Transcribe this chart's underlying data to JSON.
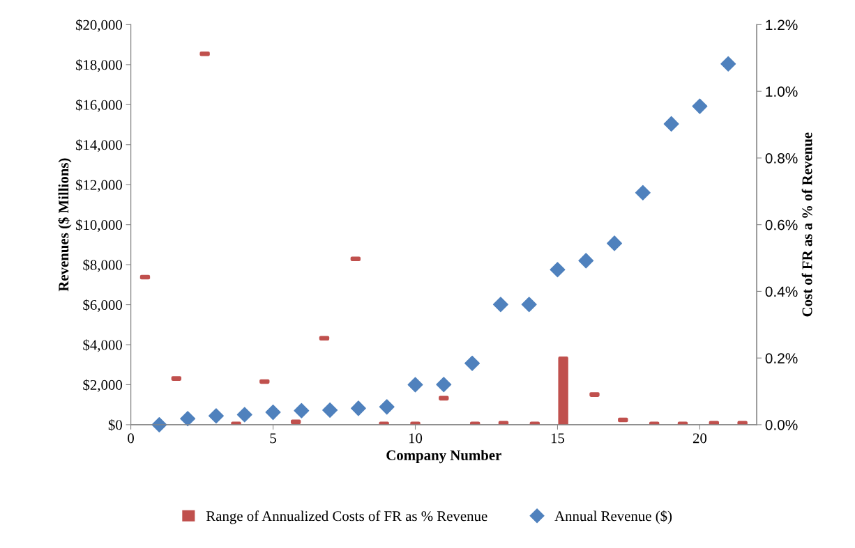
{
  "chart_data": {
    "type": "scatter",
    "xlabel": "Company Number",
    "ylabel": "Revenues ($ Millions)",
    "y2label": "Cost of FR as a % of Revenue",
    "xlim": [
      0,
      22
    ],
    "xticks": [
      0,
      5,
      10,
      15,
      20
    ],
    "ylim": [
      0,
      20000
    ],
    "yticks": [
      {
        "value": 0,
        "label": "$0"
      },
      {
        "value": 2000,
        "label": "$2,000"
      },
      {
        "value": 4000,
        "label": "$4,000"
      },
      {
        "value": 6000,
        "label": "$6,000"
      },
      {
        "value": 8000,
        "label": "$8,000"
      },
      {
        "value": 10000,
        "label": "$10,000"
      },
      {
        "value": 12000,
        "label": "$12,000"
      },
      {
        "value": 14000,
        "label": "$14,000"
      },
      {
        "value": 16000,
        "label": "$16,000"
      },
      {
        "value": 18000,
        "label": "$18,000"
      },
      {
        "value": 20000,
        "label": "$20,000"
      }
    ],
    "y2lim": [
      0,
      1.2
    ],
    "y2ticks": [
      {
        "value": 0,
        "label": "0.0%"
      },
      {
        "value": 0.2,
        "label": "0.2%"
      },
      {
        "value": 0.4,
        "label": "0.4%"
      },
      {
        "value": 0.6,
        "label": "0.6%"
      },
      {
        "value": 0.8,
        "label": "0.8%"
      },
      {
        "value": 1.0,
        "label": "1.0%"
      },
      {
        "value": 1.2,
        "label": "1.2%"
      }
    ],
    "grid": false,
    "legend": "bottom",
    "marker": "diamond",
    "series": [
      {
        "name": "Range of Annualized Costs of FR as % Revenue",
        "type": "bar",
        "axis": "y2",
        "color": "#c0504d",
        "x": [
          0.5,
          1.6,
          2.6,
          3.7,
          4.7,
          5.8,
          6.8,
          7.9,
          8.9,
          10.0,
          11.0,
          12.1,
          13.1,
          14.2,
          15.2,
          16.3,
          17.3,
          18.4,
          19.4,
          20.5,
          21.5
        ],
        "base": [
          0.44,
          0.136,
          1.11,
          0,
          0.127,
          0.006,
          0.257,
          0.495,
          0,
          0,
          0.077,
          0,
          0.002,
          0,
          0,
          0.088,
          0.012,
          0,
          0,
          0.002,
          0.002
        ],
        "values": [
          0.005,
          0.005,
          0.005,
          0.005,
          0.005,
          0.005,
          0.005,
          0.005,
          0.005,
          0.005,
          0.005,
          0.005,
          0.005,
          0.005,
          0.2,
          0.005,
          0.005,
          0.005,
          0.005,
          0.005,
          0.005
        ]
      },
      {
        "name": "Annual Revenue ($)",
        "color": "#4f81bd",
        "x": [
          1,
          2,
          3,
          4,
          5,
          6,
          7,
          8,
          9,
          10,
          11,
          12,
          13,
          14,
          15,
          16,
          17,
          18,
          19,
          20,
          21
        ],
        "values": [
          0,
          300,
          440,
          500,
          620,
          700,
          730,
          820,
          890,
          2000,
          2010,
          3070,
          6010,
          6010,
          7750,
          8200,
          9070,
          11600,
          15040,
          15920,
          18040
        ]
      }
    ]
  }
}
